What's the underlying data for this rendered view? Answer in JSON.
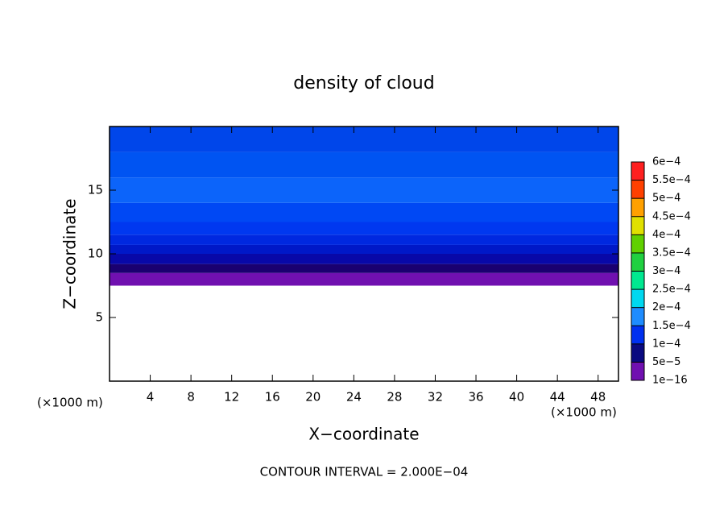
{
  "chart_data": {
    "type": "contour",
    "title": "density of cloud",
    "xlabel": "X−coordinate",
    "ylabel": "Z−coordinate",
    "unit_labels": [
      "(×1000 m)",
      "(×1000 m)"
    ],
    "footnote": "CONTOUR INTERVAL = 2.000E−04",
    "xlim": [
      0,
      50
    ],
    "ylim": [
      0,
      20
    ],
    "xticks": [
      4,
      8,
      12,
      16,
      20,
      24,
      28,
      32,
      36,
      40,
      44,
      48
    ],
    "yticks": [
      5,
      10,
      15
    ],
    "bands": [
      {
        "z": [
          7.5,
          8.5
        ],
        "color": "#7010b0"
      },
      {
        "z": [
          8.5,
          9.2
        ],
        "color": "#1a0070"
      },
      {
        "z": [
          9.2,
          10
        ],
        "color": "#0808a8"
      },
      {
        "z": [
          10,
          10.7
        ],
        "color": "#0018c8"
      },
      {
        "z": [
          10.7,
          11.5
        ],
        "color": "#0028e0"
      },
      {
        "z": [
          11.5,
          12.5
        ],
        "color": "#0038f0"
      },
      {
        "z": [
          12.5,
          14
        ],
        "color": "#0048f4"
      },
      {
        "z": [
          14,
          16
        ],
        "color": "#0c64fa"
      },
      {
        "z": [
          16,
          18
        ],
        "color": "#0054f2"
      },
      {
        "z": [
          18,
          20
        ],
        "color": "#0046ea"
      }
    ],
    "colorbar": {
      "levels": [
        {
          "value": 1e-16,
          "label": "1e−16"
        },
        {
          "value": 5e-05,
          "label": "5e−5"
        },
        {
          "value": 0.0001,
          "label": "1e−4"
        },
        {
          "value": 0.00015,
          "label": "1.5e−4"
        },
        {
          "value": 0.0002,
          "label": "2e−4"
        },
        {
          "value": 0.00025,
          "label": "2.5e−4"
        },
        {
          "value": 0.0003,
          "label": "3e−4"
        },
        {
          "value": 0.00035,
          "label": "3.5e−4"
        },
        {
          "value": 0.0004,
          "label": "4e−4"
        },
        {
          "value": 0.00045,
          "label": "4.5e−4"
        },
        {
          "value": 0.0005,
          "label": "5e−4"
        },
        {
          "value": 0.00055,
          "label": "5.5e−4"
        },
        {
          "value": 0.0006,
          "label": "6e−4"
        }
      ],
      "colors": [
        "#7010b0",
        "#0a0a80",
        "#0030f0",
        "#1e8cff",
        "#00d8f0",
        "#00e890",
        "#20d040",
        "#60d000",
        "#e0e000",
        "#ffa000",
        "#ff4000",
        "#ff2020",
        "#ff8080"
      ]
    }
  }
}
